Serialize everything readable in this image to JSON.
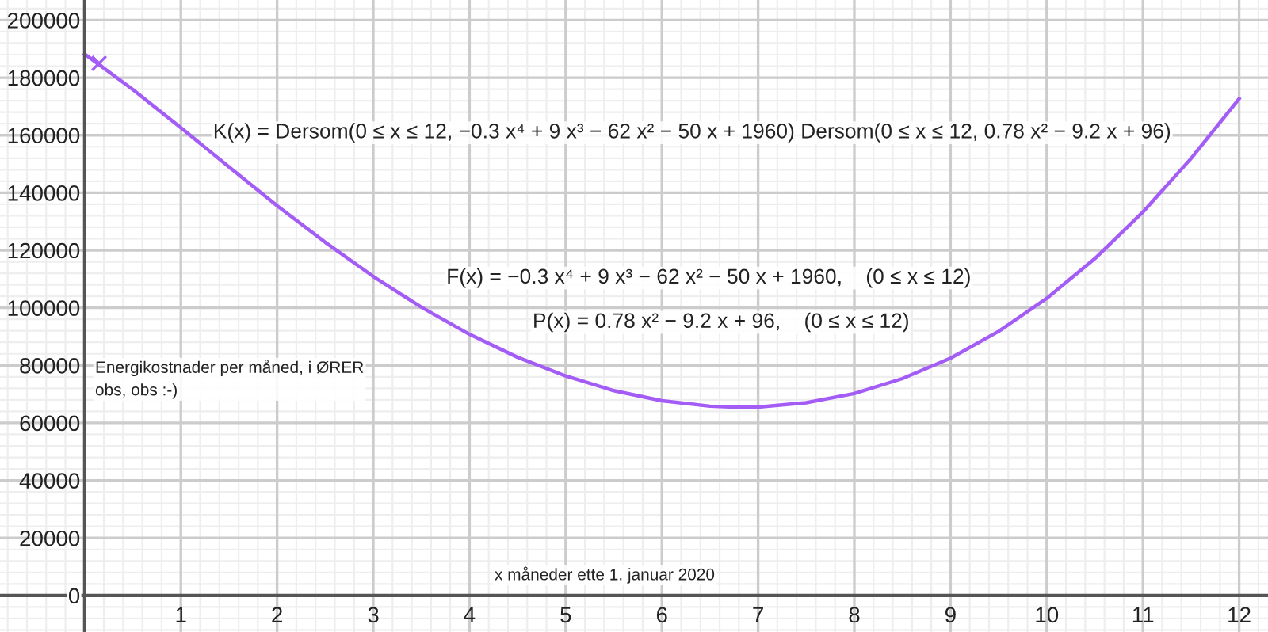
{
  "chart_data": {
    "type": "line",
    "series": [
      {
        "color": "#a35cf5",
        "x": [
          0,
          0.5,
          1,
          1.5,
          2,
          2.5,
          3,
          3.5,
          4,
          4.5,
          5,
          5.5,
          6,
          6.5,
          6.8,
          7,
          7.5,
          8,
          8.5,
          9,
          9.5,
          10,
          10.5,
          11,
          11.5,
          12
        ],
        "values": [
          188200,
          175900,
          162600,
          149000,
          135500,
          122800,
          110900,
          100200,
          90800,
          82800,
          76300,
          71200,
          67700,
          65800,
          65400,
          65500,
          67000,
          70200,
          75400,
          82500,
          91800,
          103300,
          117100,
          133300,
          151900,
          172700
        ]
      },
      {
        "type": "scatter",
        "color": "#a35cf5",
        "marker": "cross",
        "x": [
          0.15
        ],
        "values": [
          185000
        ]
      }
    ],
    "annotations": [
      "K(x) = Dersom(0 ≤ x ≤ 12, −0.3 x⁴ + 9 x³ − 62 x² − 50 x + 1960) Dersom(0 ≤ x ≤ 12, 0.78 x² − 9.2 x + 96)",
      "F(x) = −0.3 x⁴ + 9 x³ − 62 x² − 50 x + 1960,    (0 ≤ x ≤ 12)",
      "P(x) = 0.78 x² − 9.2 x + 96,    (0 ≤ x ≤ 12)",
      "Energikostnader per måned, i ØRER\nobs, obs :-)",
      "x måneder ette 1. januar 2020"
    ],
    "xlim": [
      -0.88,
      12.3
    ],
    "ylim": [
      -12700,
      207000
    ],
    "xticks": [
      1,
      2,
      3,
      4,
      5,
      6,
      7,
      8,
      9,
      10,
      11,
      12
    ],
    "yticks": [
      0,
      20000,
      40000,
      60000,
      80000,
      100000,
      120000,
      140000,
      160000,
      180000,
      200000
    ],
    "grid": true,
    "line_style": "solid"
  }
}
